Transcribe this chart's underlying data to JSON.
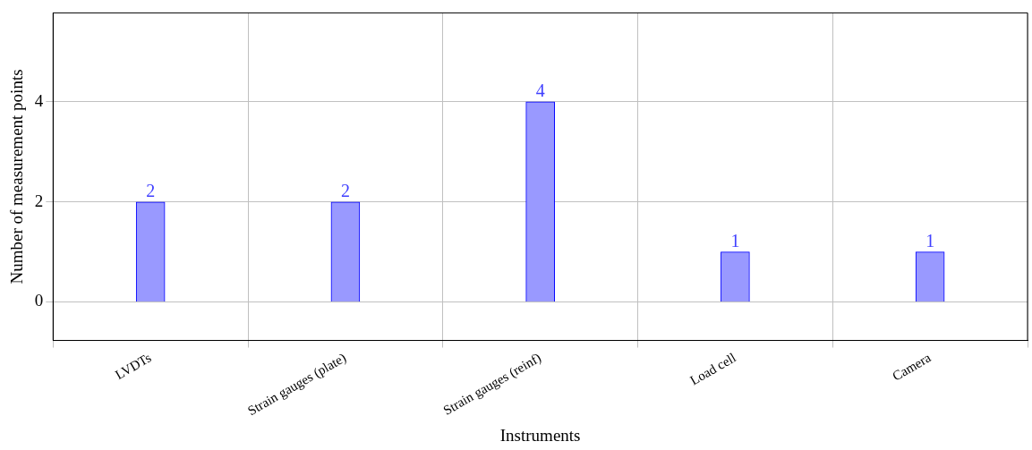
{
  "chart_data": {
    "type": "bar",
    "xlabel": "Instruments",
    "ylabel": "Number of measurement points",
    "categories": [
      "LVDTs",
      "Strain gauges (plate)",
      "Strain gauges (reinf)",
      "Load cell",
      "Camera"
    ],
    "series": [
      {
        "color": "#9999ff",
        "values": [
          2,
          2,
          4,
          1,
          1
        ]
      }
    ],
    "ylim": [
      -0.77,
      5.78
    ],
    "yticks": [
      0,
      2,
      4
    ],
    "grid": true,
    "legend": false,
    "data_labels": true
  }
}
